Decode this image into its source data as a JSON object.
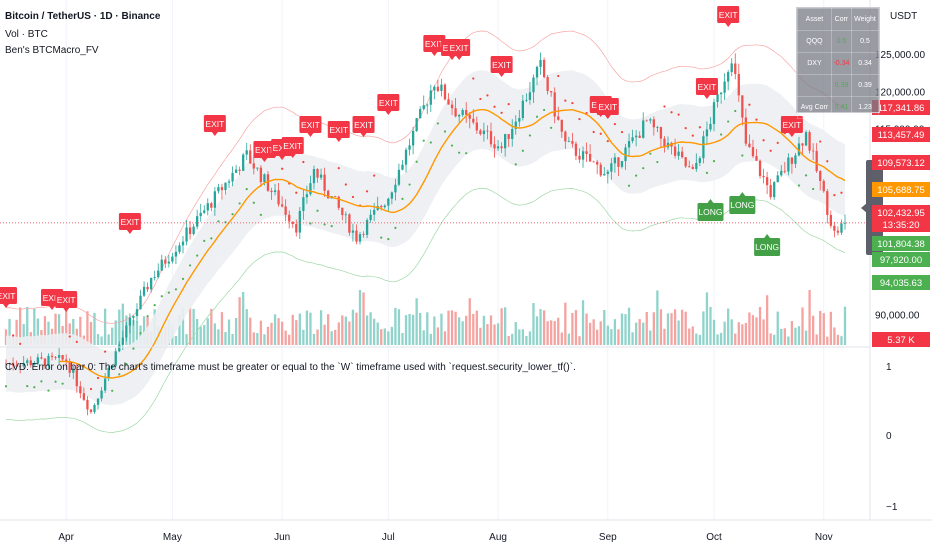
{
  "header": {
    "title": "Bitcoin / TetherUS · 1D · Binance",
    "vol_label": "Vol · BTC",
    "indicator_label": "Ben's BTCMacro_FV"
  },
  "cvd_error": "CVD: Error on bar 0: The chart's timeframe must be greater or equal to the `W` timeframe used with `request.security_lower_tf()`.",
  "price_axis": {
    "unit": "USDT",
    "ticks": [
      "125,000.00",
      "120,000.00",
      "115,000.00",
      "90,000.00"
    ],
    "tags": [
      {
        "label": "117,341.86",
        "color": "#f23645"
      },
      {
        "label": "113,457.49",
        "color": "#f23645"
      },
      {
        "label": "109,573.12",
        "color": "#f23645"
      },
      {
        "label": "105,688.75",
        "color": "#ff9800"
      },
      {
        "label": "102,432.95",
        "color": "#f23645"
      },
      {
        "label": "13:35:20",
        "color": "#f23645"
      },
      {
        "label": "101,804.38",
        "color": "#4caf50"
      },
      {
        "label": "97,920.00",
        "color": "#4caf50"
      },
      {
        "label": "94,035.63",
        "color": "#4caf50"
      },
      {
        "label": "5.37 K",
        "color": "#f23645"
      }
    ]
  },
  "cvd_axis": {
    "ticks": [
      "1",
      "0",
      "−1"
    ]
  },
  "time_axis": {
    "ticks": [
      "Apr",
      "May",
      "Jun",
      "Jul",
      "Aug",
      "Sep",
      "Oct",
      "Nov"
    ]
  },
  "signal_labels": {
    "exit": "EXIT",
    "long": "LONG"
  },
  "correlation_table": {
    "headers": [
      "Asset",
      "Corr",
      "Weight"
    ],
    "rows": [
      {
        "asset": "QQQ",
        "corr": "0.5",
        "weight": "0.5"
      },
      {
        "asset": "DXY",
        "corr": "-0.34",
        "weight": "0.34"
      },
      {
        "asset": "",
        "corr": "0.39",
        "weight": "0.39"
      },
      {
        "asset": "Avg Corr",
        "corr": "0.41",
        "weight": "1.23"
      }
    ]
  },
  "colors": {
    "up": "#26a69a",
    "down": "#ef5350",
    "ma": "#ff9800",
    "exit": "#f23645",
    "long": "#43a047",
    "band_fill": "#eceef2",
    "vol_up": "#8fd3cb",
    "vol_down": "#f4a3a0",
    "grid": "#f0f3fa"
  },
  "chart_data": {
    "type": "candlestick",
    "symbol": "Bitcoin / TetherUS",
    "interval": "1D",
    "price_range": [
      86000,
      130000
    ],
    "cvd_range": [
      -1,
      1
    ],
    "close_checkpoints": [
      {
        "date": "Mar 15",
        "close": 83500
      },
      {
        "date": "Apr 1",
        "close": 84000
      },
      {
        "date": "Apr 8",
        "close": 77000
      },
      {
        "date": "Apr 15",
        "close": 85000
      },
      {
        "date": "Apr 25",
        "close": 95000
      },
      {
        "date": "May 10",
        "close": 104000
      },
      {
        "date": "May 22",
        "close": 111500
      },
      {
        "date": "Jun 5",
        "close": 102000
      },
      {
        "date": "Jun 10",
        "close": 109500
      },
      {
        "date": "Jun 22",
        "close": 100500
      },
      {
        "date": "Jul 1",
        "close": 106000
      },
      {
        "date": "Jul 14",
        "close": 121500
      },
      {
        "date": "Jul 20",
        "close": 117500
      },
      {
        "date": "Aug 2",
        "close": 112500
      },
      {
        "date": "Aug 13",
        "close": 123500
      },
      {
        "date": "Aug 20",
        "close": 113000
      },
      {
        "date": "Sep 1",
        "close": 109000
      },
      {
        "date": "Sep 12",
        "close": 116000
      },
      {
        "date": "Sep 25",
        "close": 109000
      },
      {
        "date": "Oct 6",
        "close": 125000
      },
      {
        "date": "Oct 10",
        "close": 113000
      },
      {
        "date": "Oct 17",
        "close": 106500
      },
      {
        "date": "Oct 27",
        "close": 114500
      },
      {
        "date": "Nov 4",
        "close": 101000
      },
      {
        "date": "Nov 7",
        "close": 102432.95
      }
    ],
    "ma_last": 105688.75,
    "upper_band_last": 113457.49,
    "lower_band_last": 97920.0,
    "volume_last": "5.37 K"
  }
}
